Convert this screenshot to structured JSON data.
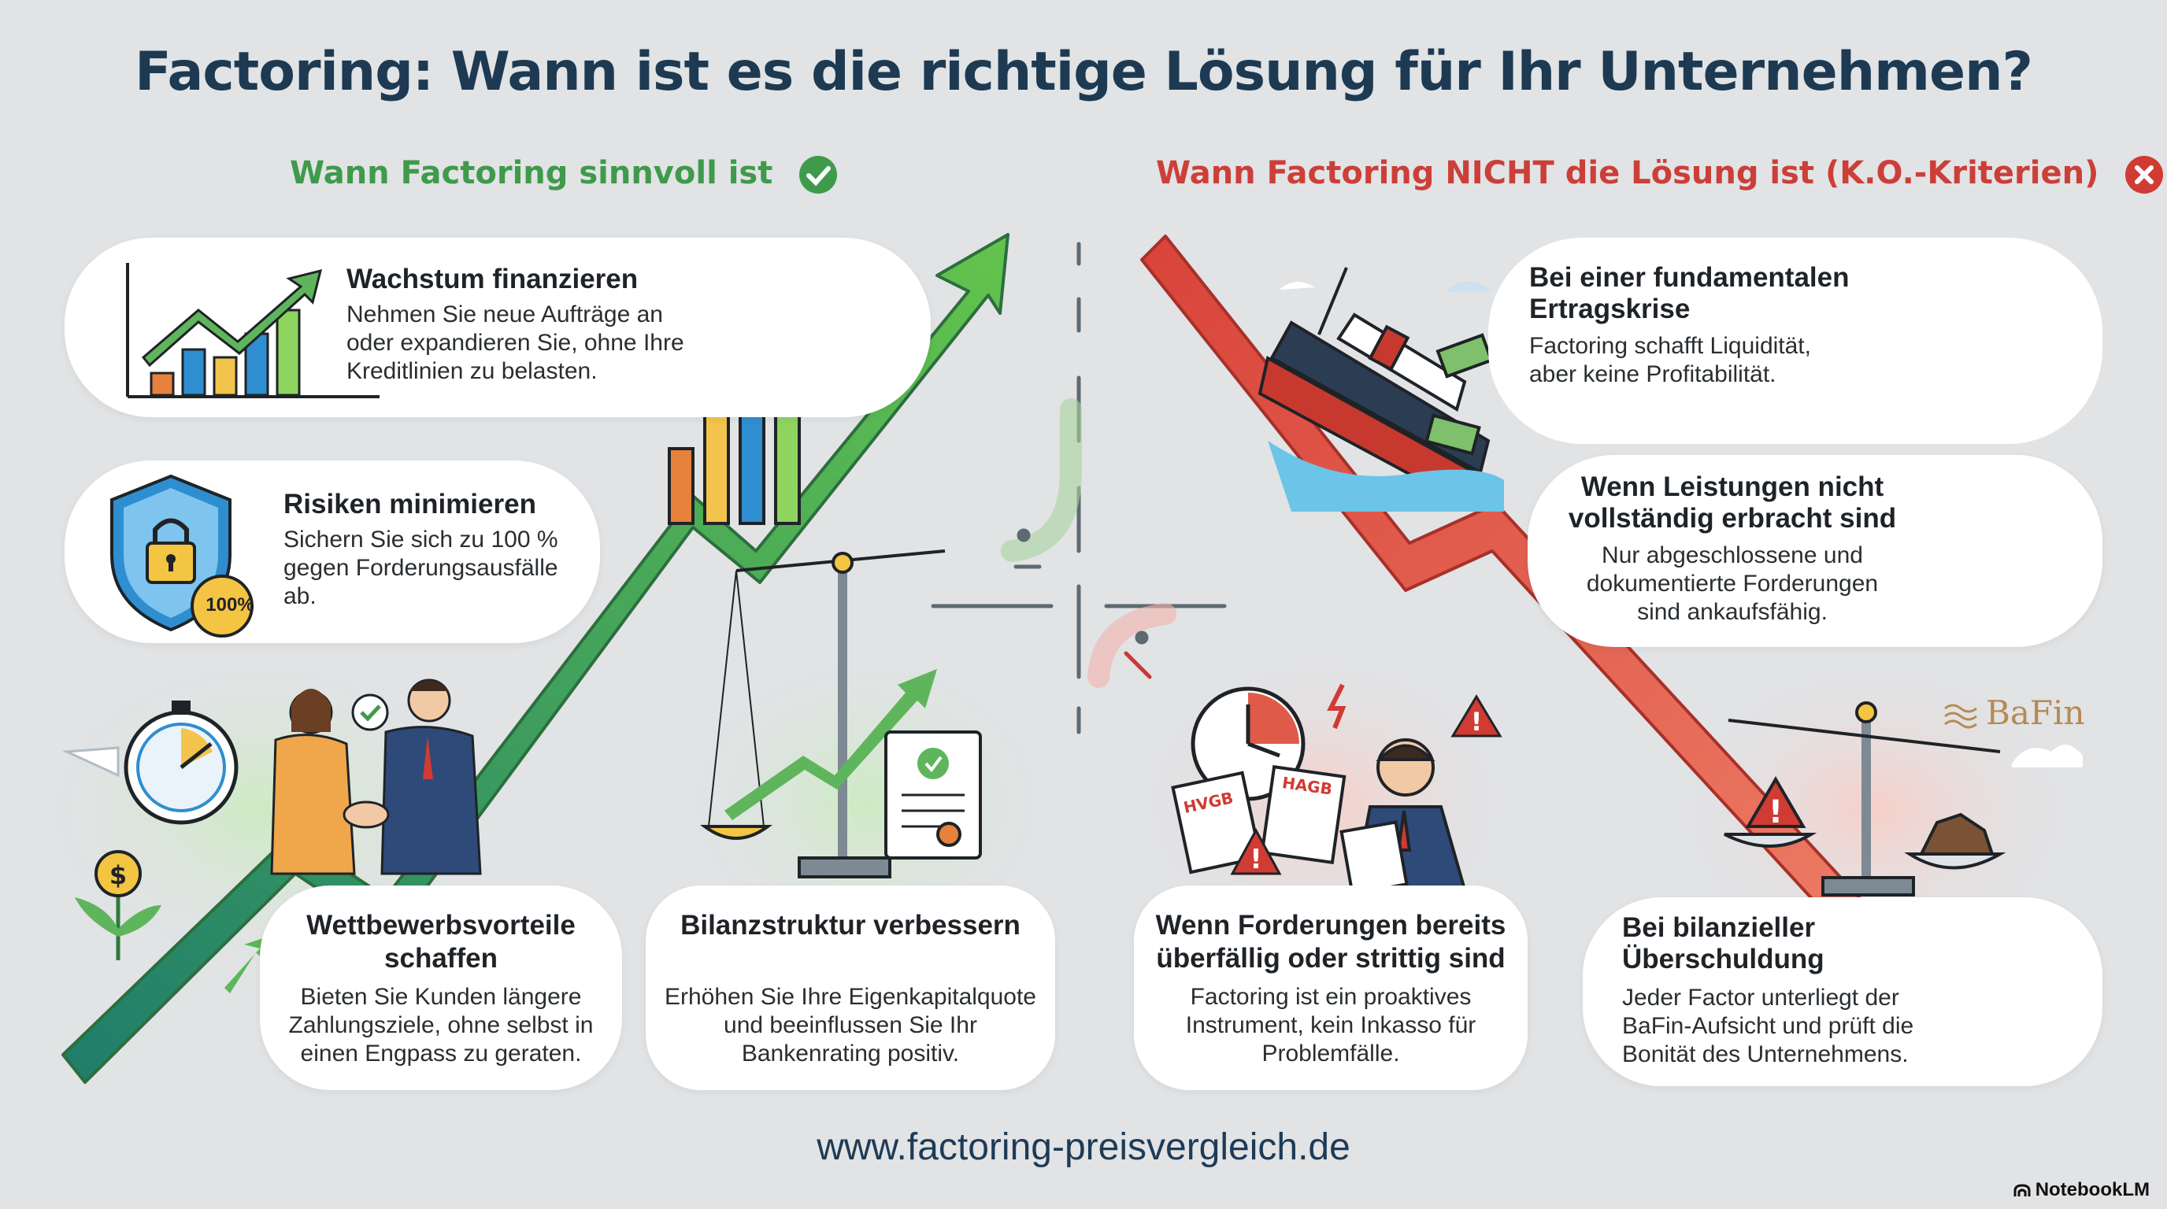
{
  "title": "Factoring: Wann ist es die richtige Lösung für Ihr Unternehmen?",
  "good_heading": "Wann Factoring sinnvoll ist",
  "bad_heading": "Wann Factoring NICHT die Lösung ist (K.O.-Kriterien)",
  "good_items": [
    {
      "title": "Wachstum finanzieren",
      "lines": [
        "Nehmen Sie neue Aufträge an",
        "oder expandieren Sie, ohne Ihre",
        "Kreditlinien zu belasten."
      ]
    },
    {
      "title": "Risiken minimieren",
      "lines": [
        "Sichern Sie sich zu 100 %",
        "gegen Forderungsausfälle",
        "ab."
      ],
      "badge": "100%"
    },
    {
      "title_lines": [
        "Wettbewerbsvorteile",
        "schaffen"
      ],
      "lines": [
        "Bieten Sie Kunden längere",
        "Zahlungsziele, ohne selbst in",
        "einen Engpass zu geraten."
      ]
    },
    {
      "title": "Bilanzstruktur verbessern",
      "lines": [
        "Erhöhen Sie Ihre Eigenkapitalquote",
        "und beeinflussen Sie Ihr",
        "Bankenrating positiv."
      ]
    }
  ],
  "bad_items": [
    {
      "title_lines": [
        "Bei einer fundamentalen",
        "Ertragskrise"
      ],
      "lines": [
        "Factoring schafft Liquidität,",
        "aber keine Profitabilität."
      ]
    },
    {
      "title_lines": [
        "Wenn Leistungen nicht",
        "vollständig erbracht sind"
      ],
      "lines": [
        "Nur abgeschlossene und",
        "dokumentierte Forderungen",
        "sind ankaufsfähig."
      ]
    },
    {
      "title_lines": [
        "Wenn Forderungen bereits",
        "überfällig oder strittig sind"
      ],
      "lines": [
        "Factoring ist ein proaktives",
        "Instrument, kein Inkasso für",
        "Problemfälle."
      ],
      "doc_labels": [
        "HVGB",
        "HAGB"
      ]
    },
    {
      "title_lines": [
        "Bei bilanzieller",
        "Überschuldung"
      ],
      "lines": [
        "Jeder Factor unterliegt der",
        "BaFin-Aufsicht und prüft die",
        "Bonität des Unternehmens."
      ]
    }
  ],
  "bafin_label": "BaFin",
  "website": "www.factoring-preisvergleich.de",
  "brand": "NotebookLM",
  "colors": {
    "green": "#3f9a4c",
    "red": "#cc3f38",
    "navy": "#1d3a52",
    "background": "#e1e3e5"
  },
  "icons": [
    "check-circle-icon",
    "cross-circle-icon",
    "growth-chart-icon",
    "shield-lock-icon",
    "stopwatch-icon",
    "handshake-icon",
    "balance-scale-icon",
    "certificate-icon",
    "sinking-ship-icon",
    "stressed-businessman-icon",
    "building-icon",
    "question-mark-icon",
    "clock-icon",
    "warning-icon",
    "angry-businessman-icon",
    "money-bag-icon",
    "notebooklm-logo-icon"
  ]
}
